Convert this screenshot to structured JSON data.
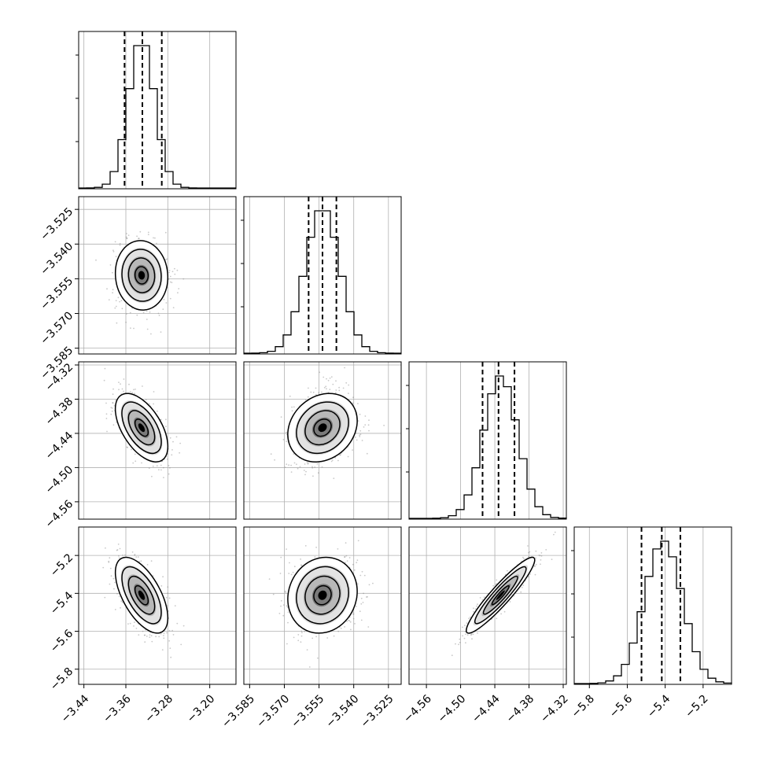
{
  "colors": {
    "line": "#000000",
    "grid": "#b0b0b0",
    "scatter": "#888888"
  },
  "chart_data": {
    "type": "corner",
    "grid": true,
    "quantile_lines": "dashed",
    "params": [
      {
        "range": [
          -3.45,
          -3.15
        ],
        "ticks": [
          -3.44,
          -3.36,
          -3.28,
          -3.2
        ],
        "tick_labels": [
          "−3.44",
          "−3.36",
          "−3.28",
          "−3.20"
        ],
        "mean": -3.33,
        "sd": 0.025,
        "quantiles": [
          -3.3625,
          -3.3285,
          -3.2915
        ]
      },
      {
        "range": [
          -3.5875,
          -3.5195
        ],
        "ticks": [
          -3.585,
          -3.57,
          -3.555,
          -3.54,
          -3.525
        ],
        "tick_labels": [
          "−3.585",
          "−3.570",
          "−3.555",
          "−3.540",
          "−3.525"
        ],
        "mean": -3.5535,
        "sd": 0.0075,
        "quantiles": [
          -3.5595,
          -3.5535,
          -3.5475
        ]
      },
      {
        "range": [
          -4.5905,
          -4.3145
        ],
        "ticks": [
          -4.56,
          -4.5,
          -4.44,
          -4.38,
          -4.32
        ],
        "tick_labels": [
          "−4.56",
          "−4.50",
          "−4.44",
          "−4.38",
          "−4.32"
        ],
        "mean": -4.43,
        "sd": 0.03,
        "quantiles": [
          -4.4615,
          -4.4335,
          -4.4055
        ]
      },
      {
        "range": [
          -5.88,
          -5.05
        ],
        "ticks": [
          -5.8,
          -5.6,
          -5.4,
          -5.2
        ],
        "tick_labels": [
          "−5.8",
          "−5.6",
          "−5.4",
          "−5.2"
        ],
        "mean": -5.41,
        "sd": 0.1,
        "quantiles": [
          -5.525,
          -5.418,
          -5.32
        ]
      }
    ],
    "correlations": [
      [
        0,
        1,
        -0.05
      ],
      [
        0,
        2,
        -0.55
      ],
      [
        0,
        3,
        -0.6
      ],
      [
        1,
        2,
        0.2
      ],
      [
        1,
        3,
        0.1
      ],
      [
        2,
        3,
        0.93
      ]
    ]
  }
}
